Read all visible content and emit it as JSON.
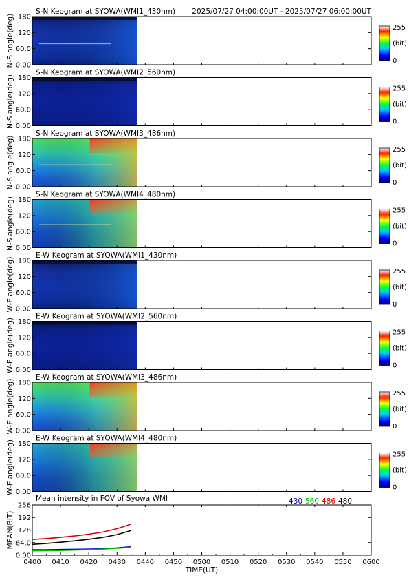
{
  "header": {
    "time_range": "2025/07/27 04:00:00UT - 2025/07/27 06:00:00UT"
  },
  "colors": {
    "wavelength_430": "#0000cc",
    "wavelength_560": "#00bb00",
    "wavelength_486": "#dd0000",
    "wavelength_480": "#000000"
  },
  "colorbar": {
    "max_label": "255",
    "min_label": "0",
    "unit_label": "(bit)"
  },
  "keogram_y_ticks": [
    "0.00",
    "60.0",
    "120",
    "180"
  ],
  "keogram_y_tick_values": [
    0,
    60,
    120,
    180
  ],
  "chart_data": [
    {
      "type": "heatmap",
      "title": "S-N Keogram at SYOWA(WMI1_430nm)",
      "ylabel": "N-S angle(deg)",
      "ylim": [
        0,
        180
      ],
      "xlim": [
        "0400",
        "0600"
      ],
      "data_end": "0437",
      "profile": "blue-dim",
      "streak_angle": 78,
      "zlim": [
        0,
        255
      ]
    },
    {
      "type": "heatmap",
      "title": "S-N Keogram at SYOWA(WMI2_560nm)",
      "ylabel": "N-S angle(deg)",
      "ylim": [
        0,
        180
      ],
      "xlim": [
        "0400",
        "0600"
      ],
      "data_end": "0437",
      "profile": "blue-dark",
      "zlim": [
        0,
        255
      ]
    },
    {
      "type": "heatmap",
      "title": "S-N Keogram at SYOWA(WMI3_486nm)",
      "ylabel": "N-S angle(deg)",
      "ylim": [
        0,
        180
      ],
      "xlim": [
        "0400",
        "0600"
      ],
      "data_end": "0437",
      "profile": "green-bright",
      "streak_angle": 82,
      "zlim": [
        0,
        255
      ]
    },
    {
      "type": "heatmap",
      "title": "S-N Keogram at SYOWA(WMI4_480nm)",
      "ylabel": "N-S angle(deg)",
      "ylim": [
        0,
        180
      ],
      "xlim": [
        "0400",
        "0600"
      ],
      "data_end": "0437",
      "profile": "green-mid",
      "streak_angle": 86,
      "zlim": [
        0,
        255
      ]
    },
    {
      "type": "heatmap",
      "title": "E-W Keogram at SYOWA(WMI1_430nm)",
      "ylabel": "W-E angle(deg)",
      "ylim": [
        0,
        180
      ],
      "xlim": [
        "0400",
        "0600"
      ],
      "data_end": "0437",
      "profile": "blue-dim",
      "zlim": [
        0,
        255
      ]
    },
    {
      "type": "heatmap",
      "title": "E-W Keogram at SYOWA(WMI2_560nm)",
      "ylabel": "W-E angle(deg)",
      "ylim": [
        0,
        180
      ],
      "xlim": [
        "0400",
        "0600"
      ],
      "data_end": "0437",
      "profile": "blue-dark",
      "zlim": [
        0,
        255
      ]
    },
    {
      "type": "heatmap",
      "title": "E-W Keogram at SYOWA(WMI3_486nm)",
      "ylabel": "W-E angle(deg)",
      "ylim": [
        0,
        180
      ],
      "xlim": [
        "0400",
        "0600"
      ],
      "data_end": "0437",
      "profile": "green-bright",
      "zlim": [
        0,
        255
      ]
    },
    {
      "type": "heatmap",
      "title": "E-W Keogram at SYOWA(WMI4_480nm)",
      "ylabel": "W-E angle(deg)",
      "ylim": [
        0,
        180
      ],
      "xlim": [
        "0400",
        "0600"
      ],
      "data_end": "0437",
      "profile": "green-mid",
      "zlim": [
        0,
        255
      ]
    },
    {
      "type": "line",
      "title": "Mean intensity in FOV of Syowa WMI",
      "ylabel": "MEAN(BIT)",
      "xlabel": "TIME(UT)",
      "ylim": [
        0,
        256
      ],
      "y_ticks": [
        "0.00",
        "64.0",
        "128",
        "192",
        "256"
      ],
      "y_tick_values": [
        0,
        64,
        128,
        192,
        256
      ],
      "x_ticks": [
        "0400",
        "0410",
        "0420",
        "0430",
        "0440",
        "0450",
        "0500",
        "0510",
        "0520",
        "0530",
        "0540",
        "0550",
        "0600"
      ],
      "x": [
        "0400",
        "0405",
        "0410",
        "0415",
        "0420",
        "0425",
        "0430",
        "0435"
      ],
      "series": [
        {
          "name": "430",
          "values": [
            28,
            28,
            29,
            30,
            31,
            33,
            37,
            44
          ]
        },
        {
          "name": "560",
          "values": [
            22,
            23,
            24,
            26,
            28,
            31,
            35,
            40
          ]
        },
        {
          "name": "486",
          "values": [
            80,
            85,
            91,
            98,
            107,
            118,
            135,
            158
          ]
        },
        {
          "name": "480",
          "values": [
            55,
            60,
            66,
            73,
            81,
            91,
            105,
            126
          ]
        }
      ]
    }
  ]
}
